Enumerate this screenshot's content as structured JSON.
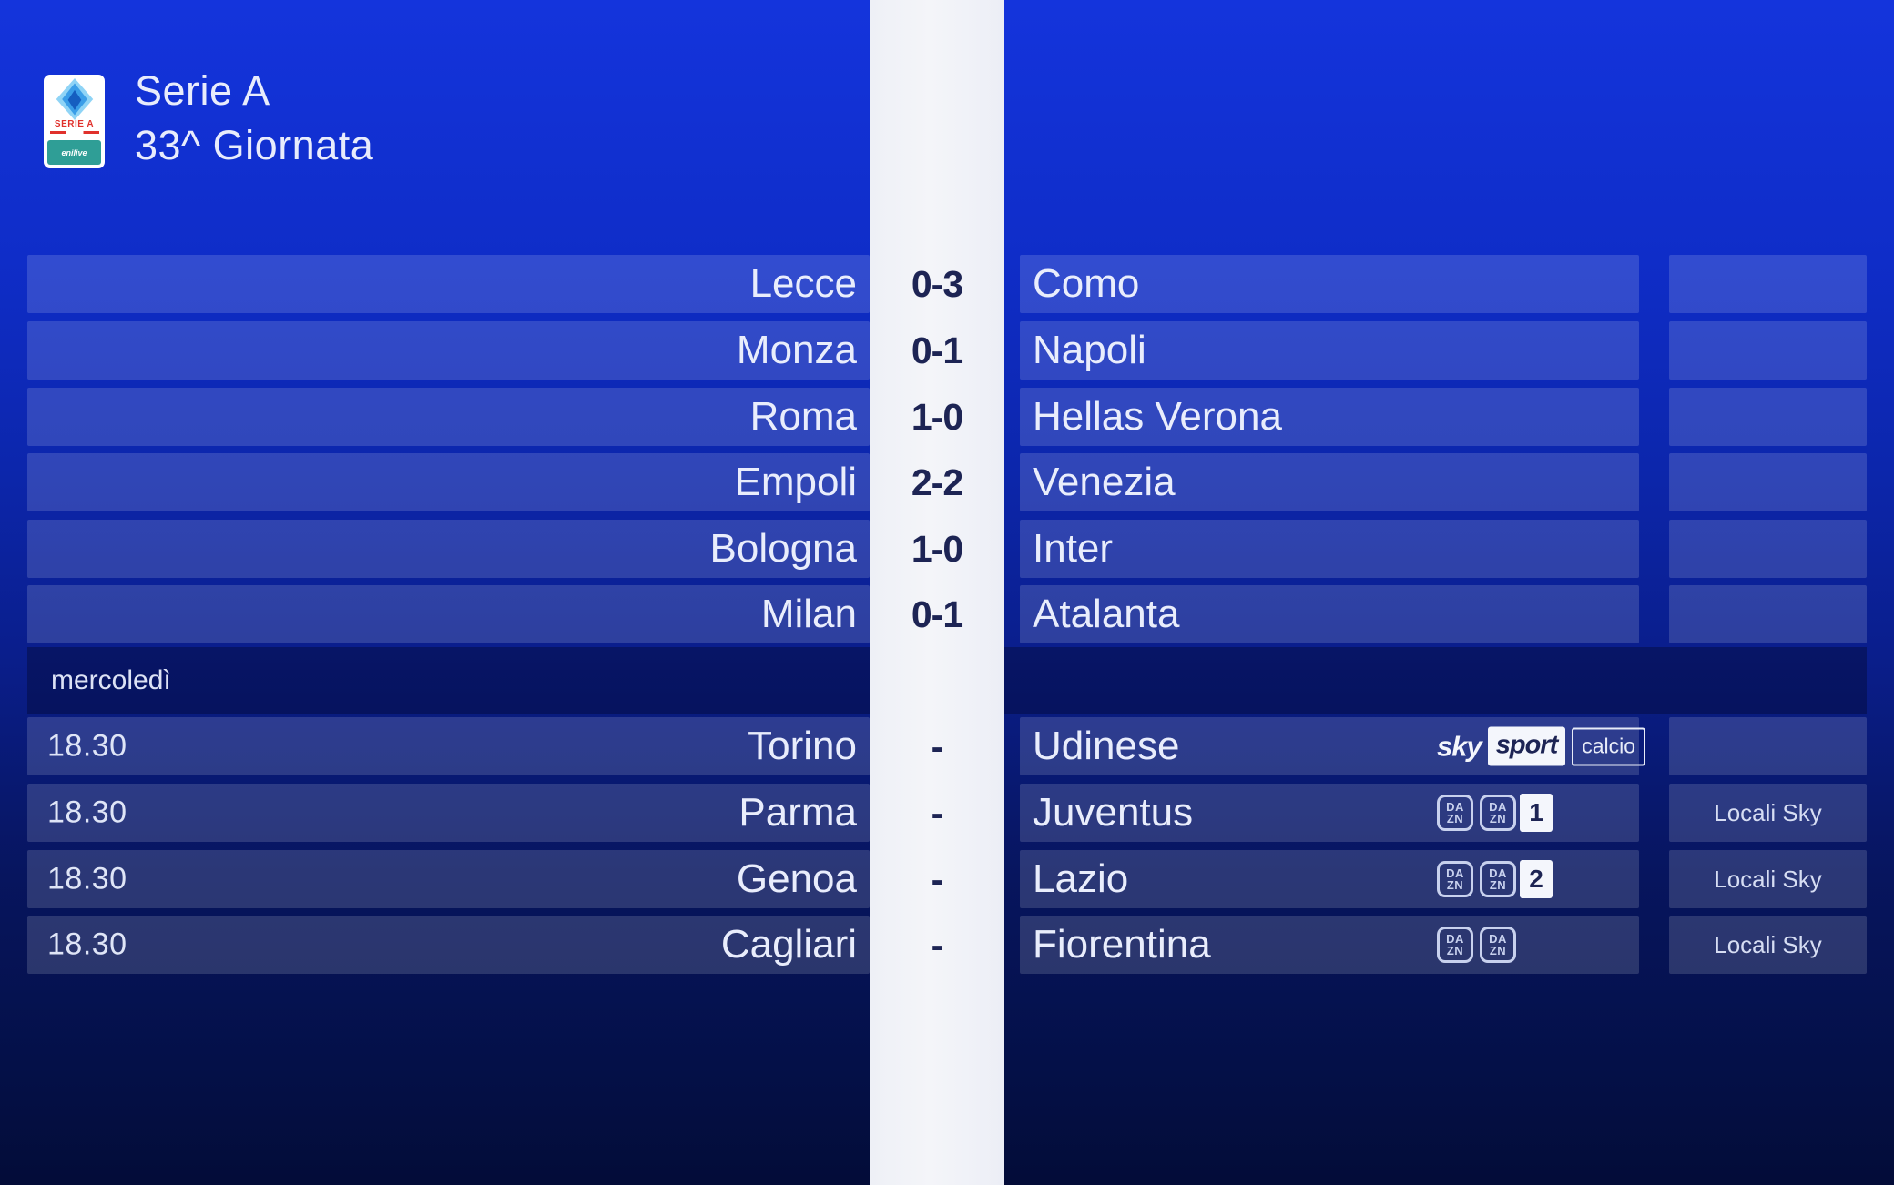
{
  "header": {
    "competition": "Serie A",
    "matchday": "33^ Giornata",
    "logo": {
      "league": "SERIE A",
      "sponsor": "enilive"
    }
  },
  "day_label": "mercoledì",
  "results": [
    {
      "home": "Lecce",
      "score": "0-3",
      "away": "Como"
    },
    {
      "home": "Monza",
      "score": "0-1",
      "away": "Napoli"
    },
    {
      "home": "Roma",
      "score": "1-0",
      "away": "Hellas Verona"
    },
    {
      "home": "Empoli",
      "score": "2-2",
      "away": "Venezia"
    },
    {
      "home": "Bologna",
      "score": "1-0",
      "away": "Inter"
    },
    {
      "home": "Milan",
      "score": "0-1",
      "away": "Atalanta"
    }
  ],
  "fixtures": [
    {
      "time": "18.30",
      "home": "Torino",
      "score": "-",
      "away": "Udinese",
      "tv": {
        "type": "sky_sport",
        "sky": "sky",
        "sport": "sport",
        "suffix": "calcio"
      },
      "right_label": ""
    },
    {
      "time": "18.30",
      "home": "Parma",
      "score": "-",
      "away": "Juventus",
      "tv": {
        "type": "dazn",
        "channels": [
          "",
          "1"
        ]
      },
      "right_label": "Locali Sky"
    },
    {
      "time": "18.30",
      "home": "Genoa",
      "score": "-",
      "away": "Lazio",
      "tv": {
        "type": "dazn",
        "channels": [
          "",
          "2"
        ]
      },
      "right_label": "Locali Sky"
    },
    {
      "time": "18.30",
      "home": "Cagliari",
      "score": "-",
      "away": "Fiorentina",
      "tv": {
        "type": "dazn",
        "channels": [
          "",
          ""
        ]
      },
      "right_label": "Locali Sky"
    }
  ],
  "branding": {
    "dazn_line1": "DA",
    "dazn_line2": "ZN"
  },
  "colors": {
    "strip": "#f1f2f7",
    "score_text": "#1d2454",
    "team_text": "#e9edfc",
    "accent_red": "#e0312c",
    "accent_teal": "#2f9e96"
  }
}
